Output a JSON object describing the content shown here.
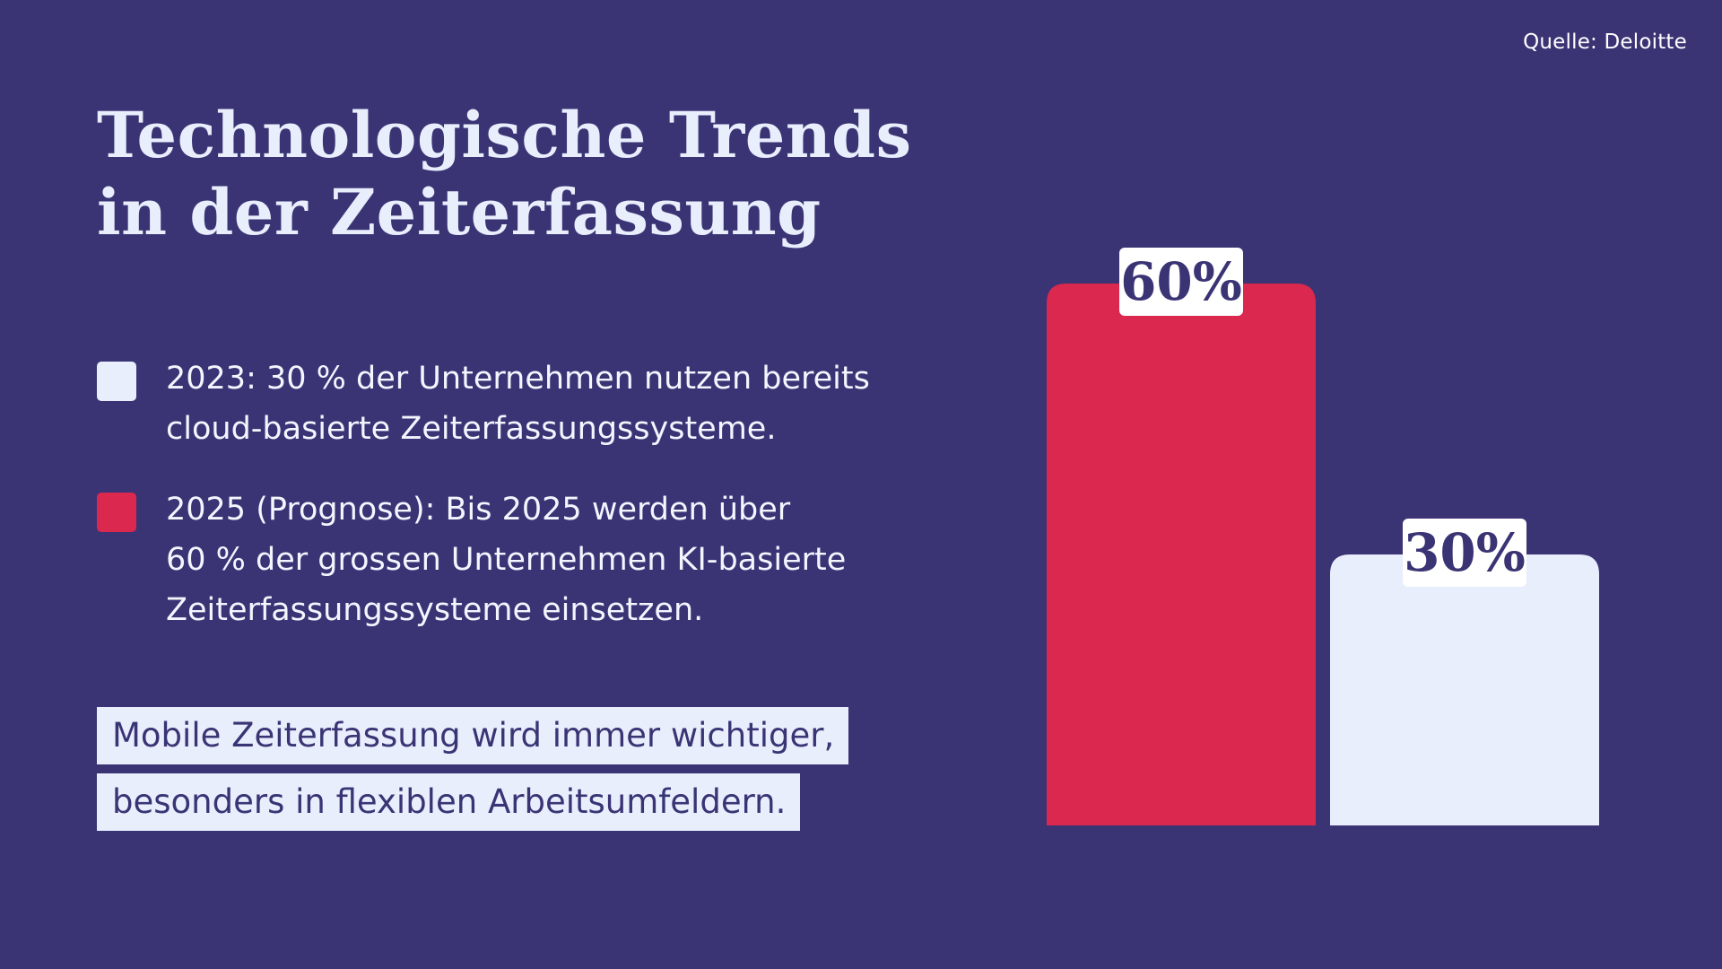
{
  "source": "Quelle: Deloitte",
  "title": {
    "line1": "Technologische Trends",
    "line2": "in der Zeiterfassung"
  },
  "legend": [
    {
      "lines": [
        "2023: 30 % der Unternehmen nutzen bereits",
        "cloud-basierte Zeiterfassungssysteme."
      ],
      "color": "#e9eefc"
    },
    {
      "lines": [
        "2025 (Prognose): Bis 2025 werden über",
        "60 % der grossen Unternehmen KI-basierte",
        "Zeiterfassungssysteme einsetzen."
      ],
      "color": "#da284f"
    }
  ],
  "callout": {
    "line1": "Mobile Zeiterfassung wird immer wichtiger,",
    "line2": "besonders in flexiblen Arbeitsumfeldern."
  },
  "colors": {
    "background": "#3a3475",
    "accent_red": "#da284f",
    "light": "#e9eefc"
  },
  "chart_data": {
    "type": "bar",
    "categories": [
      "2025 (Prognose)",
      "2023"
    ],
    "values": [
      60,
      30
    ],
    "labels": [
      "60%",
      "30%"
    ],
    "colors": [
      "#da284f",
      "#e9eefc"
    ],
    "unit": "%",
    "ylim": [
      0,
      60
    ],
    "title": "",
    "xlabel": "",
    "ylabel": ""
  }
}
